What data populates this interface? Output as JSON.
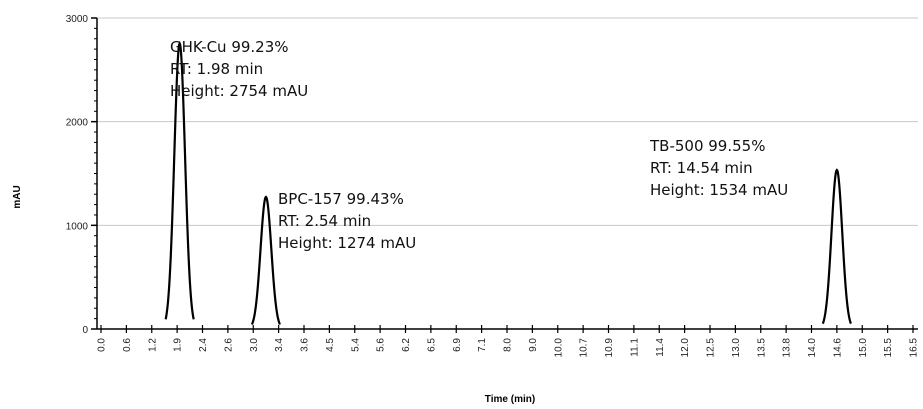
{
  "chart_data": {
    "type": "line",
    "title": "",
    "xlabel": "Time (min)",
    "ylabel": "mAU",
    "xlim": [
      0.0,
      16.5
    ],
    "ylim": [
      0,
      3000
    ],
    "grid": true,
    "y_ticks": [
      0,
      1000,
      2000,
      3000
    ],
    "y_tick_labels": [
      "0",
      "1000",
      "2000",
      "3000"
    ],
    "x_tick_labels": [
      "0.0",
      "0.6",
      "1.2",
      "1.9",
      "2.4",
      "2.6",
      "3.0",
      "3.4",
      "3.6",
      "4.5",
      "5.4",
      "5.6",
      "6.2",
      "6.5",
      "6.9",
      "7.1",
      "8.0",
      "9.0",
      "10.0",
      "10.7",
      "10.9",
      "11.1",
      "11.4",
      "12.0",
      "12.5",
      "13.0",
      "13.5",
      "13.8",
      "14.0",
      "14.6",
      "15.0",
      "15.5",
      "16.5"
    ],
    "peaks": [
      {
        "name": "GHK-Cu",
        "purity": "99.23%",
        "rt": 1.98,
        "height": 2754,
        "label": [
          "GHK-Cu 99.23%",
          "RT: 1.98 min",
          "Height: 2754 mAU"
        ]
      },
      {
        "name": "BPC-157",
        "purity": "99.43%",
        "rt": 2.54,
        "height": 1274,
        "label": [
          "BPC-157 99.43%",
          "RT: 2.54 min",
          "Height: 1274 mAU"
        ]
      },
      {
        "name": "TB-500",
        "purity": "99.55%",
        "rt": 14.54,
        "height": 1534,
        "label": [
          "TB-500 99.55%",
          "RT: 14.54 min",
          "Height: 1534 mAU"
        ]
      }
    ],
    "line_color": "#000000",
    "grid_color": "#c8c8c8"
  }
}
